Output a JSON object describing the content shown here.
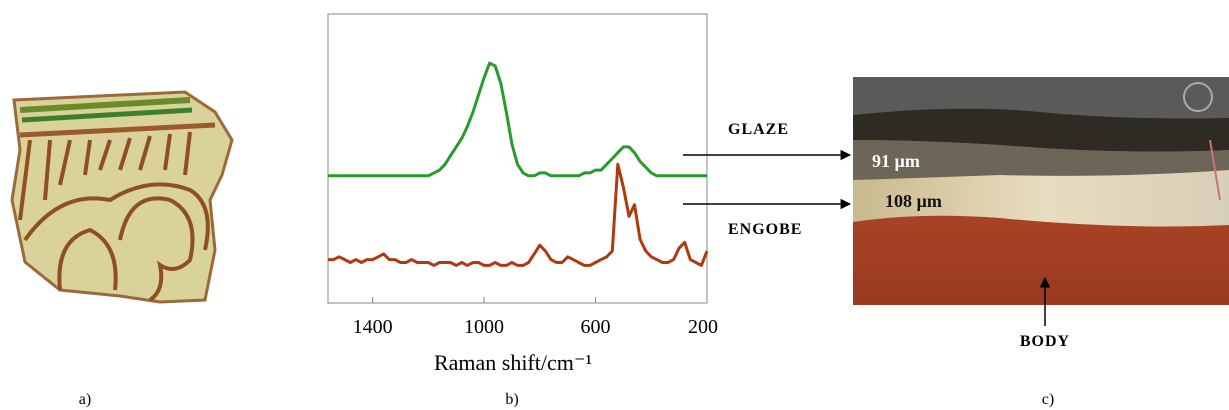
{
  "panels": {
    "a": {
      "label": "a)"
    },
    "b": {
      "label": "b)"
    },
    "c": {
      "label": "c)",
      "layers": {
        "glaze": "GLAZE",
        "engobe": "ENGOBE",
        "body": "BODY"
      },
      "thickness": {
        "glaze": "91 µm",
        "engobe": "108 µm"
      }
    }
  },
  "chart_data": {
    "type": "line",
    "xlabel": "Raman shift/cm⁻¹",
    "x": [
      1560,
      1540,
      1520,
      1500,
      1480,
      1460,
      1440,
      1420,
      1400,
      1380,
      1360,
      1340,
      1320,
      1300,
      1280,
      1260,
      1240,
      1220,
      1200,
      1180,
      1160,
      1140,
      1120,
      1100,
      1080,
      1060,
      1040,
      1020,
      1000,
      980,
      960,
      940,
      920,
      900,
      880,
      860,
      840,
      820,
      800,
      780,
      760,
      740,
      720,
      700,
      680,
      660,
      640,
      620,
      600,
      580,
      560,
      540,
      520,
      500,
      480,
      460,
      440,
      420,
      400,
      380,
      360,
      340,
      320,
      300,
      280,
      260,
      240,
      220,
      200
    ],
    "xlim": [
      1560,
      200
    ],
    "xticks": [
      1400,
      1000,
      600,
      200
    ],
    "ylim": [
      0,
      100
    ],
    "series": [
      {
        "color": "#2a9a2a",
        "values": [
          44,
          44,
          44,
          44,
          44,
          44,
          44,
          44,
          44,
          44,
          44,
          44,
          44,
          44,
          44,
          44,
          44,
          44,
          44,
          45,
          46,
          48,
          51,
          54,
          57,
          61,
          66,
          72,
          78,
          83,
          82,
          76,
          66,
          55,
          48,
          45,
          44,
          44,
          45,
          45,
          44,
          44,
          44,
          44,
          44,
          44,
          45,
          45,
          46,
          46,
          48,
          50,
          52,
          54,
          54,
          52,
          49,
          47,
          45,
          44,
          44,
          44,
          44,
          44,
          44,
          44,
          44,
          44,
          44
        ]
      },
      {
        "color": "#b03a10",
        "values": [
          15,
          15,
          16,
          15,
          14,
          15,
          14,
          15,
          15,
          16,
          17,
          15,
          15,
          14,
          14,
          15,
          14,
          14,
          14,
          13,
          14,
          14,
          14,
          13,
          14,
          13,
          14,
          14,
          13,
          13,
          14,
          13,
          13,
          14,
          13,
          13,
          14,
          17,
          20,
          18,
          15,
          14,
          14,
          16,
          15,
          14,
          13,
          13,
          14,
          15,
          16,
          18,
          48,
          40,
          30,
          34,
          22,
          18,
          16,
          15,
          14,
          14,
          15,
          19,
          21,
          15,
          14,
          13,
          18
        ]
      }
    ]
  }
}
